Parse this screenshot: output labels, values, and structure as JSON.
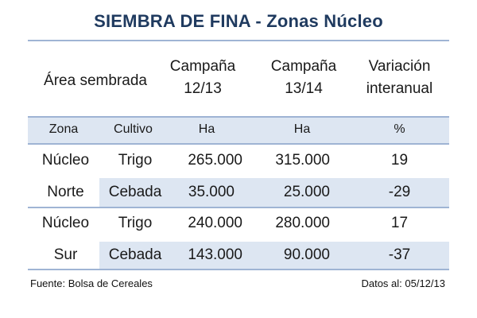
{
  "title": "SIEMBRA DE FINA - Zonas Núcleo",
  "header": {
    "area": "Área sembrada",
    "campana1_line1": "Campaña",
    "campana1_line2": "12/13",
    "campana2_line1": "Campaña",
    "campana2_line2": "13/14",
    "variacion_line1": "Variación",
    "variacion_line2": "interanual"
  },
  "subheader": {
    "zona": "Zona",
    "cultivo": "Cultivo",
    "ha1": "Ha",
    "ha2": "Ha",
    "pct": "%"
  },
  "groups": [
    {
      "zona_line1": "Núcleo",
      "zona_line2": "Norte",
      "rows": [
        {
          "cultivo": "Trigo",
          "c1213": "265.000",
          "c1314": "315.000",
          "var": "19"
        },
        {
          "cultivo": "Cebada",
          "c1213": "35.000",
          "c1314": "25.000",
          "var": "-29"
        }
      ]
    },
    {
      "zona_line1": "Núcleo",
      "zona_line2": "Sur",
      "rows": [
        {
          "cultivo": "Trigo",
          "c1213": "240.000",
          "c1314": "280.000",
          "var": "17"
        },
        {
          "cultivo": "Cebada",
          "c1213": "143.000",
          "c1314": "90.000",
          "var": "-37"
        }
      ]
    }
  ],
  "footer": {
    "source": "Fuente: Bolsa de Cereales",
    "date": "Datos al: 05/12/13"
  },
  "colors": {
    "title": "#1f3a5f",
    "band": "#dde6f2",
    "rule": "#9fb4d4"
  }
}
